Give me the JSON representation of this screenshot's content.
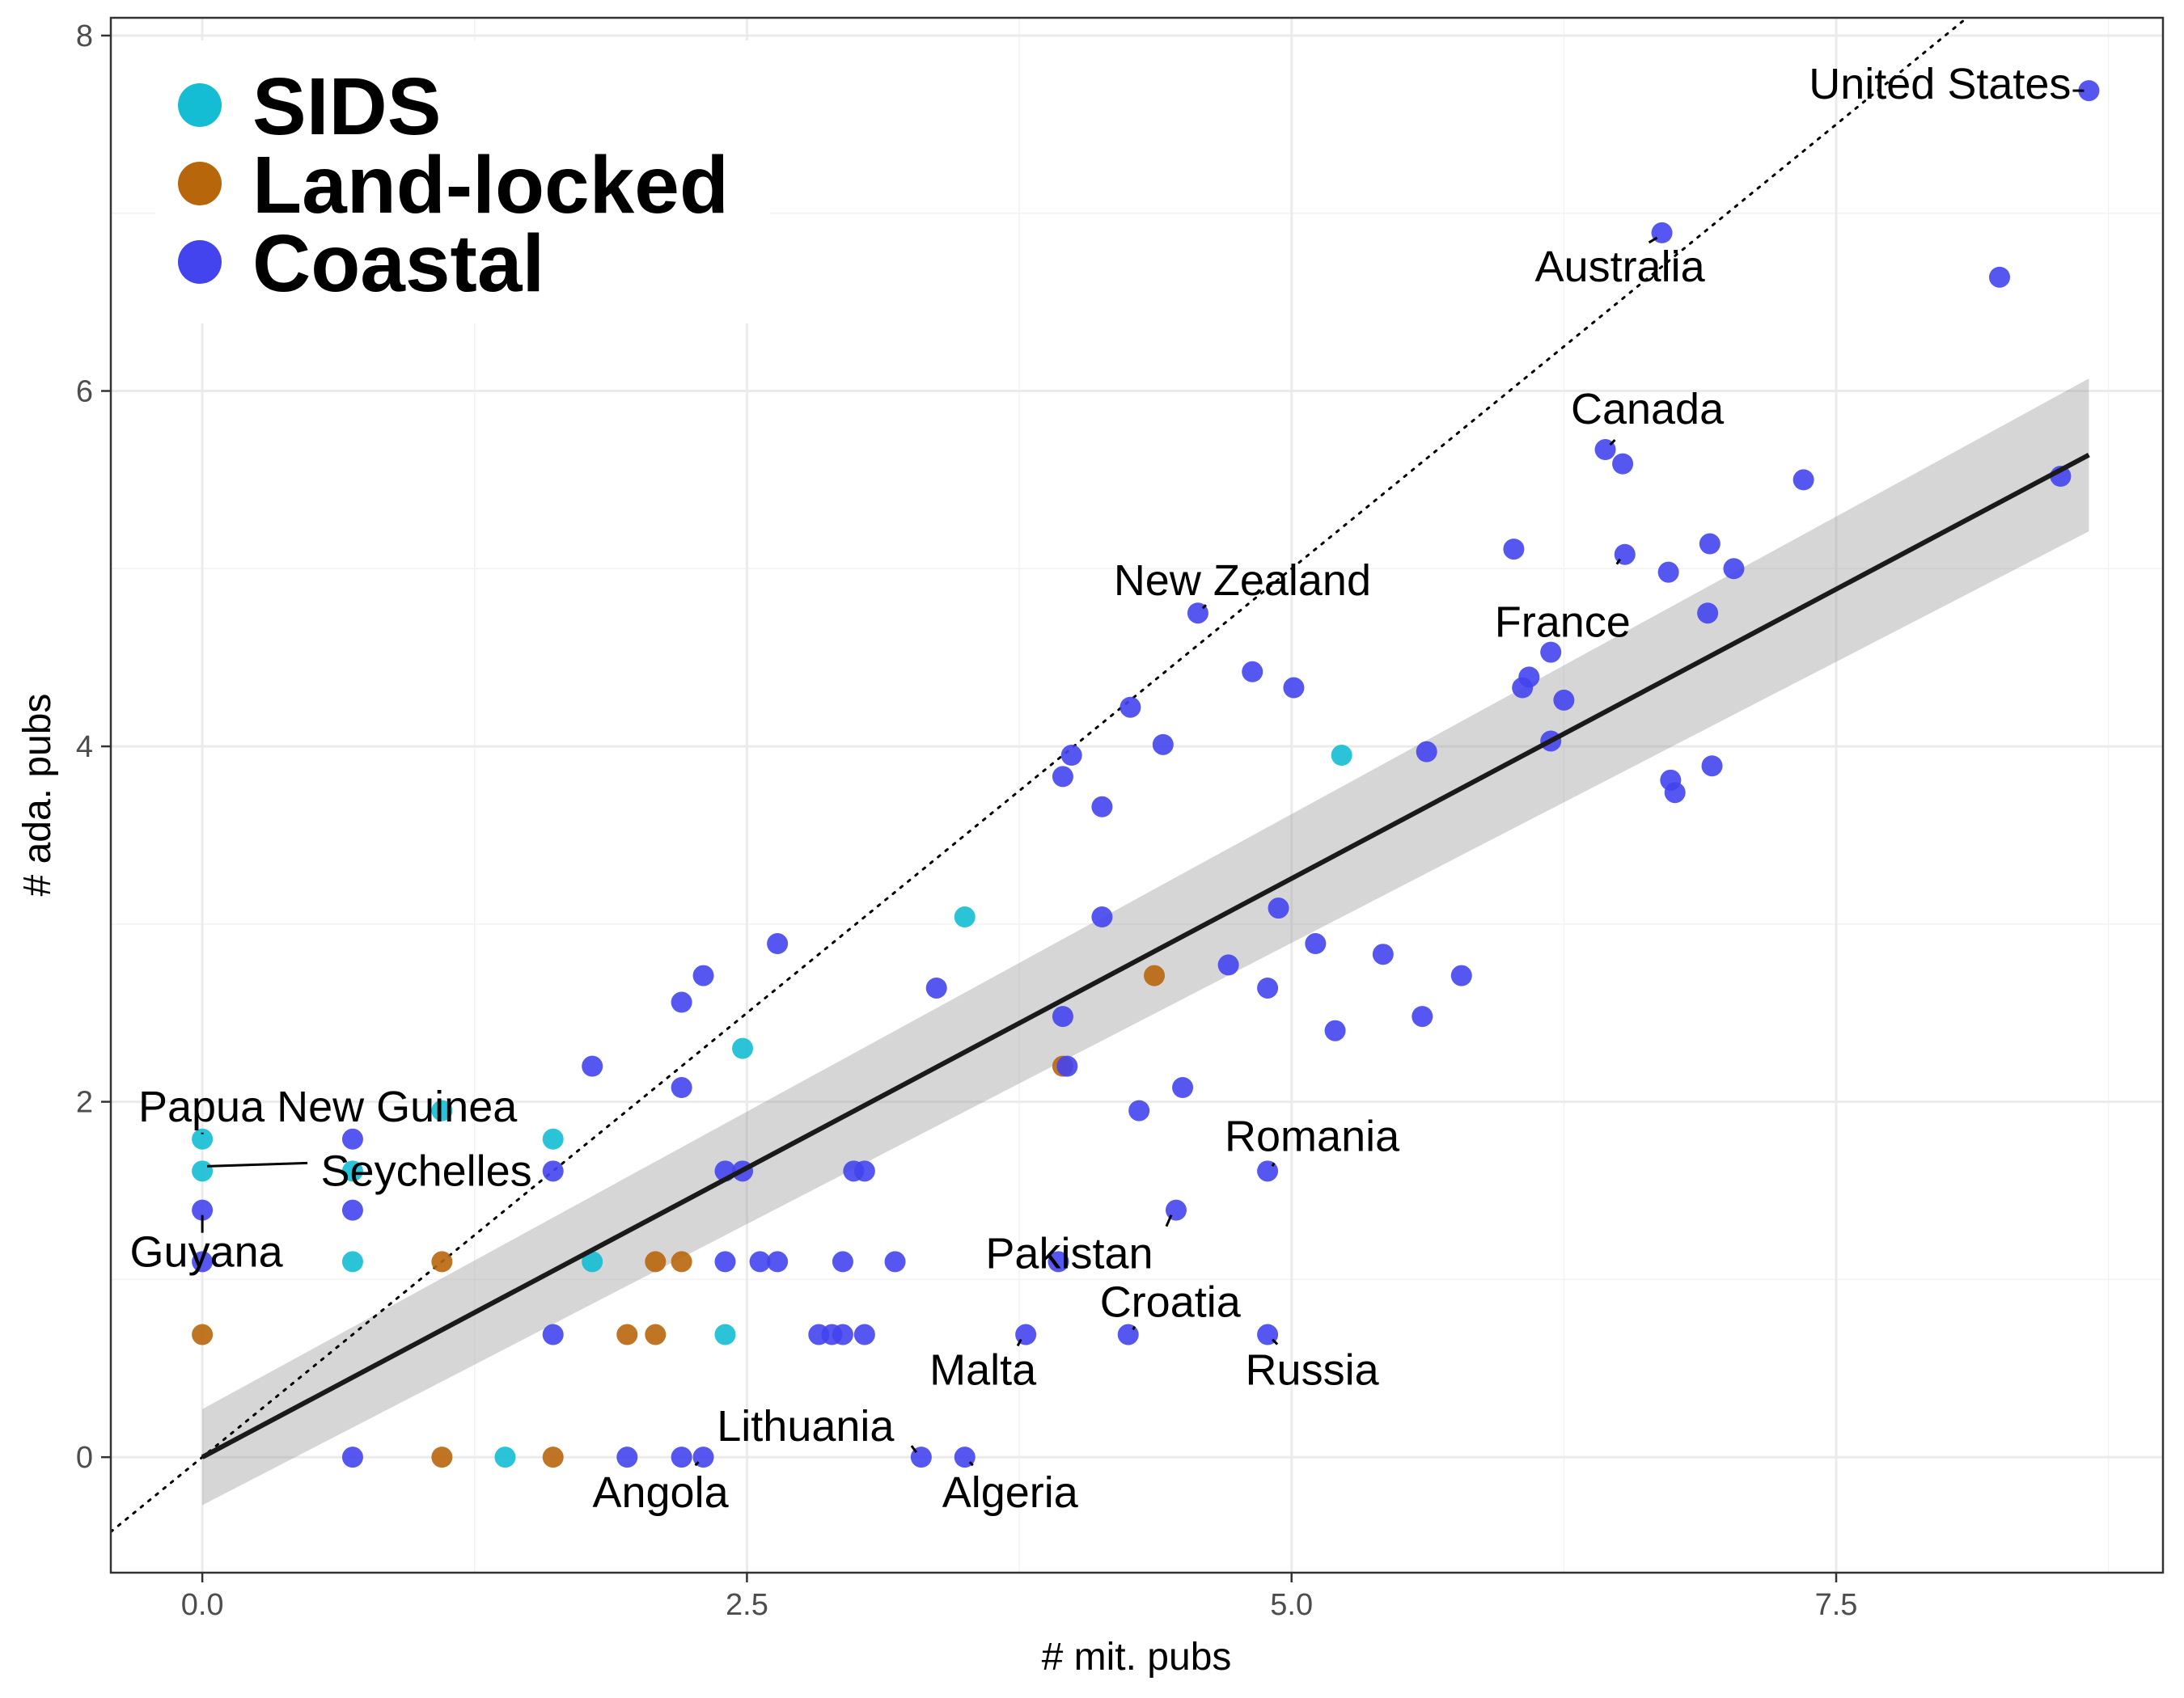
{
  "chart_data": {
    "type": "scatter",
    "title": "",
    "xlabel": "# mit. pubs",
    "ylabel": "# ada. pubs",
    "xlim": [
      -0.42,
      9.0
    ],
    "ylim": [
      -0.65,
      8.1
    ],
    "x_ticks": [
      0.0,
      2.5,
      5.0,
      7.5
    ],
    "x_tick_labels": [
      "0.0",
      "2.5",
      "5.0",
      "7.5"
    ],
    "y_ticks": [
      0,
      2,
      4,
      6,
      8
    ],
    "y_tick_labels": [
      "0",
      "2",
      "4",
      "6",
      "8"
    ],
    "grid": true,
    "legend_position": "top-left",
    "colors": {
      "SIDS": "#14bcd4",
      "Land-locked": "#b8660b",
      "Coastal": "#4444ee"
    },
    "series": [
      {
        "name": "SIDS",
        "points": [
          [
            0,
            1.79
          ],
          [
            0,
            1.61
          ],
          [
            0.69,
            1.61
          ],
          [
            1.1,
            1.95
          ],
          [
            0.69,
            1.1
          ],
          [
            1.61,
            1.79
          ],
          [
            1.79,
            1.1
          ],
          [
            2.48,
            2.3
          ],
          [
            2.4,
            0.69
          ],
          [
            1.39,
            0
          ],
          [
            3.5,
            3.04
          ],
          [
            5.23,
            3.95
          ]
        ]
      },
      {
        "name": "Land-locked",
        "points": [
          [
            0,
            0.69
          ],
          [
            1.1,
            1.1
          ],
          [
            1.1,
            0
          ],
          [
            1.61,
            0
          ],
          [
            1.95,
            0.69
          ],
          [
            2.08,
            0.69
          ],
          [
            2.08,
            1.1
          ],
          [
            2.2,
            1.1
          ],
          [
            3.95,
            2.2
          ],
          [
            4.37,
            2.71
          ]
        ]
      },
      {
        "name": "Coastal",
        "points": [
          [
            0,
            1.39
          ],
          [
            0,
            1.1
          ],
          [
            0.69,
            1.79
          ],
          [
            0.69,
            1.39
          ],
          [
            0.69,
            0
          ],
          [
            1.61,
            1.61
          ],
          [
            1.61,
            0.69
          ],
          [
            1.79,
            2.2
          ],
          [
            1.95,
            0
          ],
          [
            2.2,
            0
          ],
          [
            2.3,
            0
          ],
          [
            2.2,
            2.08
          ],
          [
            2.2,
            2.56
          ],
          [
            2.3,
            2.71
          ],
          [
            2.4,
            1.61
          ],
          [
            2.48,
            1.61
          ],
          [
            2.4,
            1.1
          ],
          [
            2.56,
            1.1
          ],
          [
            2.64,
            1.1
          ],
          [
            2.64,
            2.89
          ],
          [
            2.94,
            1.1
          ],
          [
            2.83,
            0.69
          ],
          [
            2.89,
            0.69
          ],
          [
            2.94,
            0.69
          ],
          [
            3.04,
            0.69
          ],
          [
            2.99,
            1.61
          ],
          [
            3.04,
            1.61
          ],
          [
            3.18,
            1.1
          ],
          [
            3.3,
            0
          ],
          [
            3.37,
            2.64
          ],
          [
            3.5,
            0
          ],
          [
            3.78,
            0.69
          ],
          [
            3.93,
            1.1
          ],
          [
            3.95,
            3.83
          ],
          [
            3.97,
            2.2
          ],
          [
            3.99,
            3.95
          ],
          [
            3.95,
            2.48
          ],
          [
            4.13,
            3.66
          ],
          [
            4.13,
            3.04
          ],
          [
            4.25,
            0.69
          ],
          [
            4.26,
            4.22
          ],
          [
            4.3,
            1.95
          ],
          [
            4.41,
            4.01
          ],
          [
            4.47,
            1.39
          ],
          [
            4.5,
            2.08
          ],
          [
            4.57,
            4.75
          ],
          [
            4.71,
            2.77
          ],
          [
            4.82,
            4.42
          ],
          [
            4.89,
            1.61
          ],
          [
            4.89,
            0.69
          ],
          [
            4.89,
            2.64
          ],
          [
            4.94,
            3.09
          ],
          [
            5.01,
            4.33
          ],
          [
            5.11,
            2.89
          ],
          [
            5.2,
            2.4
          ],
          [
            5.42,
            2.83
          ],
          [
            5.6,
            2.48
          ],
          [
            5.62,
            3.97
          ],
          [
            5.78,
            2.71
          ],
          [
            6.02,
            5.11
          ],
          [
            6.06,
            4.33
          ],
          [
            6.09,
            4.39
          ],
          [
            6.19,
            4.53
          ],
          [
            6.19,
            4.03
          ],
          [
            6.25,
            4.26
          ],
          [
            6.44,
            5.67
          ],
          [
            6.52,
            5.59
          ],
          [
            6.53,
            5.08
          ],
          [
            6.7,
            6.89
          ],
          [
            6.73,
            4.98
          ],
          [
            6.74,
            3.81
          ],
          [
            6.76,
            3.74
          ],
          [
            6.91,
            4.75
          ],
          [
            6.92,
            5.14
          ],
          [
            6.93,
            3.89
          ],
          [
            7.03,
            5.0
          ],
          [
            7.35,
            5.5
          ],
          [
            8.25,
            6.64
          ],
          [
            8.53,
            5.52
          ],
          [
            8.66,
            7.69
          ]
        ]
      }
    ],
    "point_labels": [
      {
        "text": "United States",
        "x": 8.66,
        "y": 7.69
      },
      {
        "text": "Australia",
        "x": 6.7,
        "y": 6.89
      },
      {
        "text": "Canada",
        "x": 6.44,
        "y": 5.67
      },
      {
        "text": "New Zealand",
        "x": 4.57,
        "y": 4.75
      },
      {
        "text": "France",
        "x": 6.53,
        "y": 5.08
      },
      {
        "text": "Romania",
        "x": 4.89,
        "y": 1.61
      },
      {
        "text": "Pakistan",
        "x": 4.47,
        "y": 1.39
      },
      {
        "text": "Croatia",
        "x": 4.25,
        "y": 0.69
      },
      {
        "text": "Russia",
        "x": 4.89,
        "y": 0.69
      },
      {
        "text": "Malta",
        "x": 3.78,
        "y": 0.69
      },
      {
        "text": "Lithuania",
        "x": 3.3,
        "y": 0
      },
      {
        "text": "Algeria",
        "x": 3.5,
        "y": 0
      },
      {
        "text": "Angola",
        "x": 2.3,
        "y": 0
      },
      {
        "text": "Papua New Guinea",
        "x": 0,
        "y": 1.79
      },
      {
        "text": "Seychelles",
        "x": 0,
        "y": 1.61
      },
      {
        "text": "Guyana",
        "x": 0,
        "y": 1.39
      }
    ],
    "fit_line": {
      "x": [
        0,
        8.66
      ],
      "y": [
        0,
        5.64
      ],
      "ci_lower": [
        -0.27,
        5.21
      ],
      "ci_upper": [
        0.27,
        6.07
      ]
    },
    "identity_line": {
      "slope": 1,
      "intercept": 0
    }
  }
}
